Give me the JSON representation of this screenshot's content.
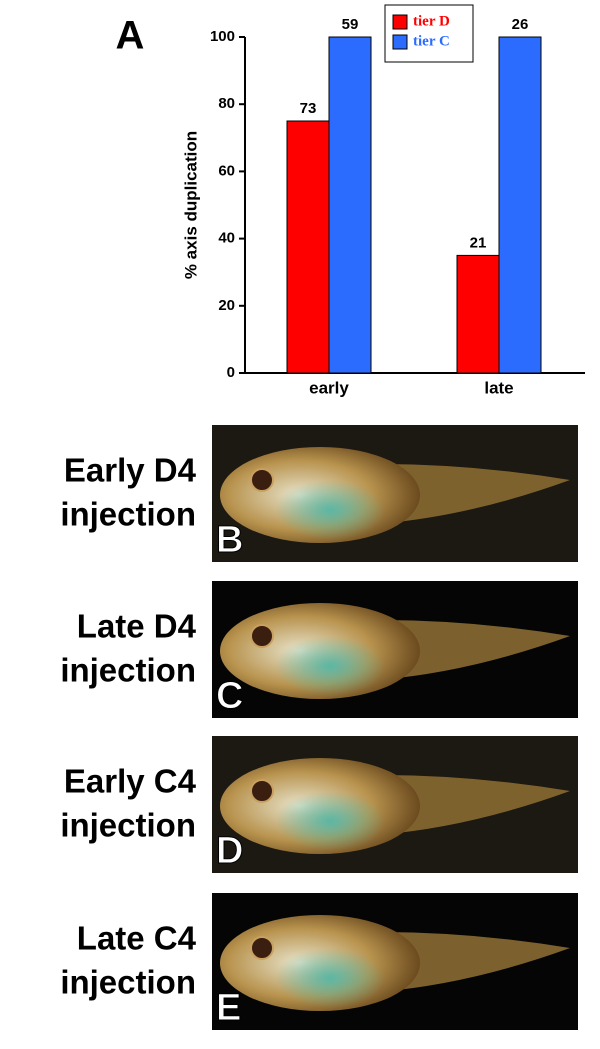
{
  "chart_data": {
    "type": "bar",
    "panel_label": "A",
    "y_label": "% axis duplication",
    "categories": [
      "early",
      "late"
    ],
    "series": [
      {
        "name": "tier D",
        "color": "#ff0000",
        "values": [
          75,
          35
        ],
        "counts": [
          73,
          21
        ]
      },
      {
        "name": "tier C",
        "color": "#2b6cff",
        "values": [
          100,
          100
        ],
        "counts": [
          59,
          26
        ]
      }
    ],
    "ylim": [
      0,
      100
    ],
    "yticks": [
      0,
      20,
      40,
      60,
      80,
      100
    ],
    "legend": "upper right"
  },
  "panels": [
    {
      "lines": [
        "Early D4",
        "injection"
      ],
      "letter": "B"
    },
    {
      "lines": [
        "Late D4",
        "injection"
      ],
      "letter": "C"
    },
    {
      "lines": [
        "Early C4",
        "injection"
      ],
      "letter": "D"
    },
    {
      "lines": [
        "Late C4",
        "injection"
      ],
      "letter": "E"
    }
  ]
}
